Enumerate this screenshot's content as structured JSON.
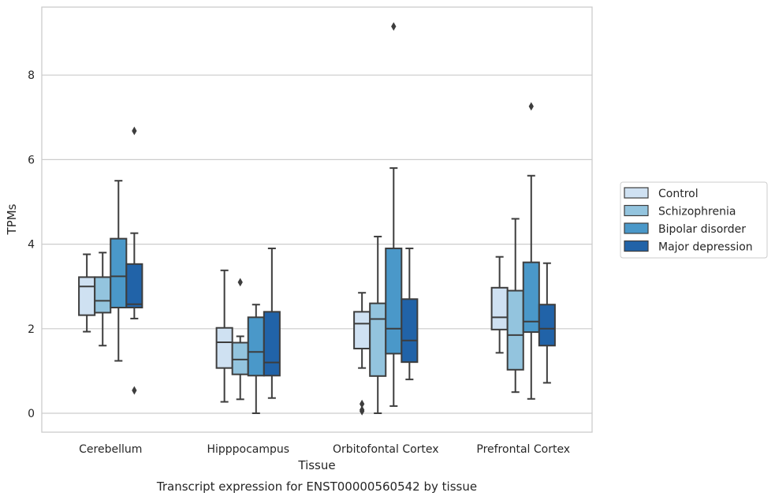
{
  "chart_data": {
    "type": "box",
    "xlabel": "Tissue",
    "ylabel": "TPMs",
    "caption": "Transcript expression for ENST00000560542 by tissue",
    "ylim": [
      -0.45,
      9.6
    ],
    "yticks": [
      0,
      2,
      4,
      6,
      8
    ],
    "grid": "horizontal",
    "legend_position": "right",
    "categories": [
      "Cerebellum",
      "Hipppocampus",
      "Orbitofontal Cortex",
      "Prefrontal Cortex"
    ],
    "series": [
      {
        "name": "Control",
        "color": "#cfe1f2",
        "boxes": [
          {
            "whislo": 1.93,
            "q1": 2.32,
            "med": 3.0,
            "q3": 3.22,
            "whishi": 3.76,
            "fliers": []
          },
          {
            "whislo": 0.27,
            "q1": 1.07,
            "med": 1.68,
            "q3": 2.02,
            "whishi": 3.38,
            "fliers": []
          },
          {
            "whislo": 1.07,
            "q1": 1.53,
            "med": 2.12,
            "q3": 2.4,
            "whishi": 2.85,
            "fliers": [
              0.05,
              0.08,
              0.22
            ]
          },
          {
            "whislo": 1.43,
            "q1": 1.98,
            "med": 2.27,
            "q3": 2.97,
            "whishi": 3.7,
            "fliers": []
          }
        ]
      },
      {
        "name": "Schizophrenia",
        "color": "#93c4de",
        "boxes": [
          {
            "whislo": 1.6,
            "q1": 2.38,
            "med": 2.66,
            "q3": 3.22,
            "whishi": 3.8,
            "fliers": []
          },
          {
            "whislo": 0.33,
            "q1": 0.92,
            "med": 1.27,
            "q3": 1.67,
            "whishi": 1.82,
            "fliers": [
              3.1
            ]
          },
          {
            "whislo": 0.0,
            "q1": 0.88,
            "med": 2.23,
            "q3": 2.6,
            "whishi": 4.18,
            "fliers": []
          },
          {
            "whislo": 0.5,
            "q1": 1.03,
            "med": 1.85,
            "q3": 2.9,
            "whishi": 4.6,
            "fliers": []
          }
        ]
      },
      {
        "name": "Bipolar disorder",
        "color": "#4a98c9",
        "boxes": [
          {
            "whislo": 1.24,
            "q1": 2.5,
            "med": 3.24,
            "q3": 4.13,
            "whishi": 5.5,
            "fliers": []
          },
          {
            "whislo": 0.0,
            "q1": 0.89,
            "med": 1.45,
            "q3": 2.27,
            "whishi": 2.57,
            "fliers": []
          },
          {
            "whislo": 0.17,
            "q1": 1.41,
            "med": 2.0,
            "q3": 3.9,
            "whishi": 5.8,
            "fliers": [
              9.15
            ]
          },
          {
            "whislo": 0.34,
            "q1": 1.92,
            "med": 2.17,
            "q3": 3.57,
            "whishi": 5.62,
            "fliers": [
              7.26
            ]
          }
        ]
      },
      {
        "name": "Major depression",
        "color": "#2163a8",
        "boxes": [
          {
            "whislo": 2.24,
            "q1": 2.5,
            "med": 2.58,
            "q3": 3.53,
            "whishi": 4.26,
            "fliers": [
              0.54,
              6.68
            ]
          },
          {
            "whislo": 0.36,
            "q1": 0.89,
            "med": 1.2,
            "q3": 2.4,
            "whishi": 3.9,
            "fliers": []
          },
          {
            "whislo": 0.8,
            "q1": 1.21,
            "med": 1.72,
            "q3": 2.7,
            "whishi": 3.9,
            "fliers": []
          },
          {
            "whislo": 0.72,
            "q1": 1.6,
            "med": 2.0,
            "q3": 2.57,
            "whishi": 3.55,
            "fliers": []
          }
        ]
      }
    ]
  }
}
